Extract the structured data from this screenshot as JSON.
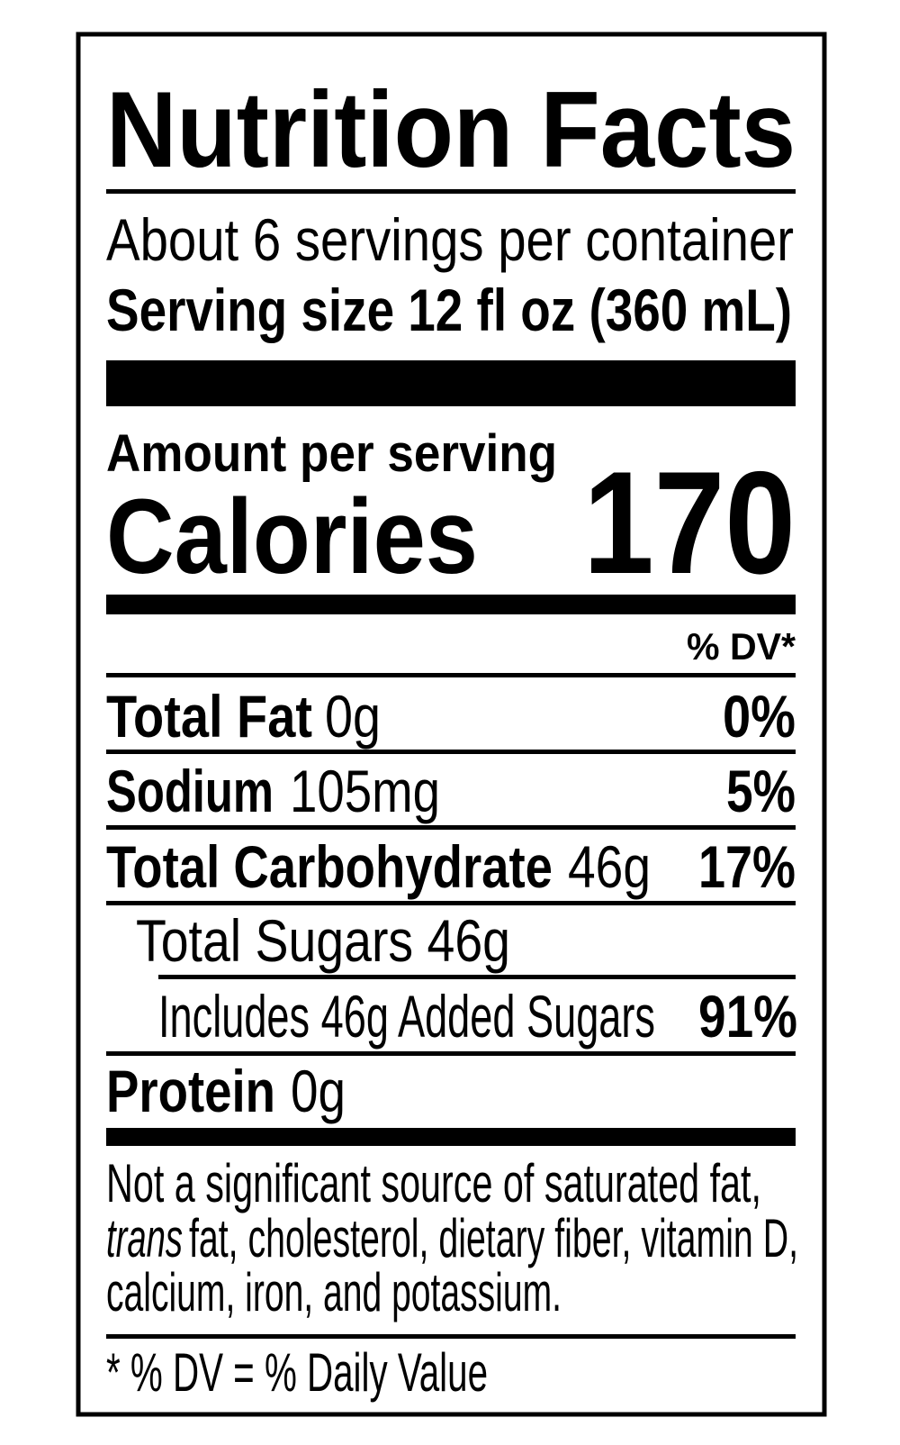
{
  "header": {
    "title": "Nutrition Facts",
    "servings": "About 6 servings per container",
    "serving_size": "Serving size 12 fl oz (360 mL)"
  },
  "calories": {
    "heading": "Amount per serving",
    "label": "Calories",
    "value": 170
  },
  "dv_header": "% DV*",
  "nutrients": [
    {
      "name": "Total Fat",
      "amount": "0g",
      "dv": "0%"
    },
    {
      "name": "Sodium",
      "amount": "105mg",
      "dv": "5%"
    },
    {
      "name": "Total Carbohydrate",
      "amount": "46g",
      "dv": "17%"
    },
    {
      "name": "Total Sugars 46g"
    },
    {
      "name": "Includes 46g Added Sugars",
      "dv": "91%"
    },
    {
      "name": "Protein",
      "amount": "0g"
    }
  ],
  "footnote": {
    "lines": [
      "Not a significant source of saturated fat,",
      "trans",
      "fat, cholesterol, dietary fiber, vitamin D,",
      "calcium, iron, and potassium."
    ],
    "dv_note": "* % DV = % Daily Value"
  }
}
